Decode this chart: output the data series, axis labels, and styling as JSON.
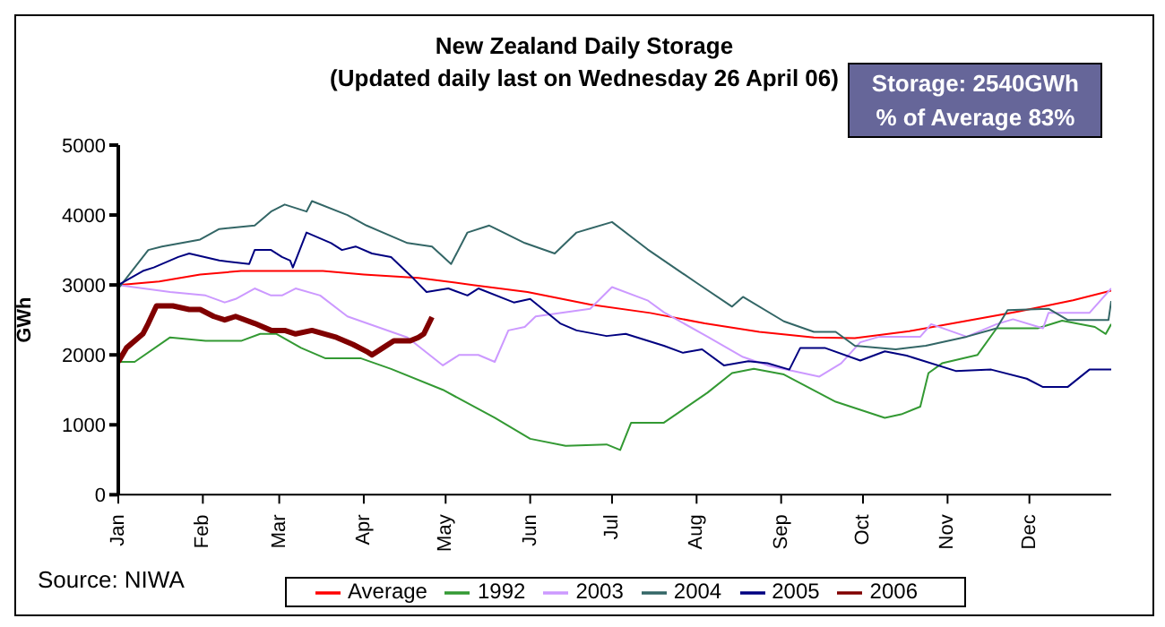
{
  "chart_data": {
    "type": "line",
    "title": "New Zealand Daily Storage",
    "subtitle": "(Updated daily last on Wednesday 26 April 06)",
    "ylabel": "GWh",
    "annotations": [
      "Storage: 2540GWh",
      "% of Average 83%",
      "Source: NIWA"
    ],
    "xlim": [
      "--01-01",
      "--12-31"
    ],
    "xticks": [
      {
        "value": "--01-01",
        "label": "Jan"
      },
      {
        "value": "--02-01",
        "label": "Feb"
      },
      {
        "value": "--03-01",
        "label": "Mar"
      },
      {
        "value": "--04-01",
        "label": "Apr"
      },
      {
        "value": "--05-01",
        "label": "May"
      },
      {
        "value": "--06-01",
        "label": "Jun"
      },
      {
        "value": "--07-01",
        "label": "Jul"
      },
      {
        "value": "--08-01",
        "label": "Aug"
      },
      {
        "value": "--09-01",
        "label": "Sep"
      },
      {
        "value": "--10-01",
        "label": "Oct"
      },
      {
        "value": "--11-01",
        "label": "Nov"
      },
      {
        "value": "--12-01",
        "label": "Dec"
      }
    ],
    "ylim": [
      0,
      5000
    ],
    "yticks": [
      0,
      1000,
      2000,
      3000,
      4000,
      5000
    ],
    "legend": "bottom",
    "marker": "none",
    "line_style": "solid",
    "series": [
      {
        "name": "Average",
        "color": "#ff0000",
        "x": [
          "--01-01",
          "--01-16",
          "--01-31",
          "--02-15",
          "--03-17",
          "--04-01",
          "--04-21",
          "--05-11",
          "--05-31",
          "--06-23",
          "--07-15",
          "--08-04",
          "--08-24",
          "--09-13",
          "--09-28",
          "--10-18",
          "--11-07",
          "--11-27",
          "--12-17",
          "--12-31"
        ],
        "values": [
          3000,
          3050,
          3150,
          3200,
          3200,
          3150,
          3100,
          3000,
          2900,
          2720,
          2600,
          2450,
          2330,
          2250,
          2240,
          2340,
          2480,
          2620,
          2780,
          2920
        ]
      },
      {
        "name": "1992",
        "color": "#339933",
        "x": [
          "--01-01",
          "--01-07",
          "--01-20",
          "--02-02",
          "--02-15",
          "--02-22",
          "--02-28",
          "--03-09",
          "--03-18",
          "--03-31",
          "--04-11",
          "--04-30",
          "--05-19",
          "--06-01",
          "--06-14",
          "--06-29",
          "--07-04",
          "--07-08",
          "--07-20",
          "--08-05",
          "--08-14",
          "--08-22",
          "--09-02",
          "--09-21",
          "--10-09",
          "--10-15",
          "--10-22",
          "--10-25",
          "--10-30",
          "--11-12",
          "--11-19",
          "--12-04",
          "--12-13",
          "--12-25",
          "--12-29",
          "--12-31"
        ],
        "values": [
          1900,
          1900,
          2250,
          2200,
          2200,
          2300,
          2300,
          2100,
          1950,
          1950,
          1800,
          1500,
          1100,
          800,
          700,
          720,
          640,
          1030,
          1030,
          1460,
          1740,
          1800,
          1720,
          1330,
          1100,
          1150,
          1260,
          1740,
          1880,
          2000,
          2380,
          2380,
          2490,
          2400,
          2300,
          2440
        ]
      },
      {
        "name": "2003",
        "color": "#cc99ff",
        "x": [
          "--01-01",
          "--01-20",
          "--02-02",
          "--02-09",
          "--02-13",
          "--02-20",
          "--02-26",
          "--03-02",
          "--03-07",
          "--03-16",
          "--03-26",
          "--04-06",
          "--04-17",
          "--04-30",
          "--05-06",
          "--05-13",
          "--05-19",
          "--05-24",
          "--05-30",
          "--06-03",
          "--06-23",
          "--07-01",
          "--07-14",
          "--07-20",
          "--08-05",
          "--08-18",
          "--08-27",
          "--09-15",
          "--09-23",
          "--09-30",
          "--10-07",
          "--10-22",
          "--10-26",
          "--11-08",
          "--11-19",
          "--11-25",
          "--12-06",
          "--12-08",
          "--12-23",
          "--12-31"
        ],
        "values": [
          3000,
          2900,
          2850,
          2750,
          2800,
          2950,
          2850,
          2850,
          2950,
          2850,
          2550,
          2400,
          2250,
          1850,
          2000,
          2000,
          1900,
          2350,
          2400,
          2550,
          2660,
          2970,
          2780,
          2610,
          2260,
          1970,
          1850,
          1690,
          1880,
          2180,
          2260,
          2260,
          2440,
          2260,
          2440,
          2510,
          2380,
          2600,
          2600,
          2950
        ]
      },
      {
        "name": "2004",
        "color": "#336666",
        "x": [
          "--01-01",
          "--01-12",
          "--01-17",
          "--01-31",
          "--02-07",
          "--02-20",
          "--02-26",
          "--03-03",
          "--03-11",
          "--03-13",
          "--03-26",
          "--04-02",
          "--04-17",
          "--04-26",
          "--05-03",
          "--05-09",
          "--05-17",
          "--05-30",
          "--06-10",
          "--06-18",
          "--07-01",
          "--07-14",
          "--08-01",
          "--08-14",
          "--08-18",
          "--09-02",
          "--09-13",
          "--09-21",
          "--09-28",
          "--10-13",
          "--10-24",
          "--11-08",
          "--11-19",
          "--11-23",
          "--12-08",
          "--12-15",
          "--12-30",
          "--12-31"
        ],
        "values": [
          2950,
          3500,
          3550,
          3650,
          3800,
          3850,
          4050,
          4150,
          4050,
          4200,
          4000,
          3850,
          3600,
          3550,
          3300,
          3750,
          3850,
          3600,
          3450,
          3750,
          3900,
          3510,
          3030,
          2690,
          2830,
          2480,
          2330,
          2330,
          2130,
          2080,
          2130,
          2260,
          2380,
          2640,
          2660,
          2500,
          2500,
          2770
        ]
      },
      {
        "name": "2005",
        "color": "#000080",
        "x": [
          "--01-01",
          "--01-10",
          "--01-14",
          "--01-23",
          "--01-27",
          "--02-07",
          "--02-18",
          "--02-20",
          "--02-26",
          "--03-02",
          "--03-05",
          "--03-06",
          "--03-11",
          "--03-20",
          "--03-24",
          "--03-29",
          "--04-04",
          "--04-11",
          "--04-19",
          "--04-24",
          "--05-02",
          "--05-09",
          "--05-13",
          "--05-26",
          "--06-01",
          "--06-12",
          "--06-18",
          "--06-29",
          "--07-06",
          "--07-20",
          "--07-27",
          "--08-03",
          "--08-11",
          "--08-20",
          "--08-27",
          "--09-04",
          "--09-08",
          "--09-17",
          "--09-30",
          "--10-09",
          "--10-17",
          "--11-04",
          "--11-17",
          "--11-30",
          "--12-06",
          "--12-15",
          "--12-23",
          "--12-31"
        ],
        "values": [
          3000,
          3200,
          3250,
          3400,
          3450,
          3350,
          3300,
          3500,
          3500,
          3400,
          3350,
          3250,
          3750,
          3600,
          3500,
          3550,
          3450,
          3400,
          3100,
          2900,
          2950,
          2850,
          2950,
          2750,
          2800,
          2450,
          2350,
          2270,
          2300,
          2130,
          2030,
          2080,
          1850,
          1910,
          1880,
          1790,
          2100,
          2100,
          1920,
          2050,
          1990,
          1770,
          1790,
          1660,
          1540,
          1540,
          1790,
          1790
        ]
      },
      {
        "name": "2006",
        "color": "#800000",
        "x": [
          "--01-01",
          "--01-04",
          "--01-10",
          "--01-12",
          "--01-15",
          "--01-21",
          "--01-27",
          "--01-31",
          "--02-05",
          "--02-09",
          "--02-13",
          "--02-20",
          "--02-26",
          "--03-03",
          "--03-07",
          "--03-13",
          "--03-22",
          "--03-28",
          "--04-02",
          "--04-04",
          "--04-08",
          "--04-12",
          "--04-18",
          "--04-21",
          "--04-23",
          "--04-26"
        ],
        "values": [
          1900,
          2100,
          2300,
          2450,
          2700,
          2700,
          2650,
          2650,
          2550,
          2500,
          2550,
          2450,
          2350,
          2350,
          2300,
          2350,
          2250,
          2150,
          2050,
          2000,
          2100,
          2200,
          2200,
          2250,
          2300,
          2540
        ]
      }
    ]
  }
}
